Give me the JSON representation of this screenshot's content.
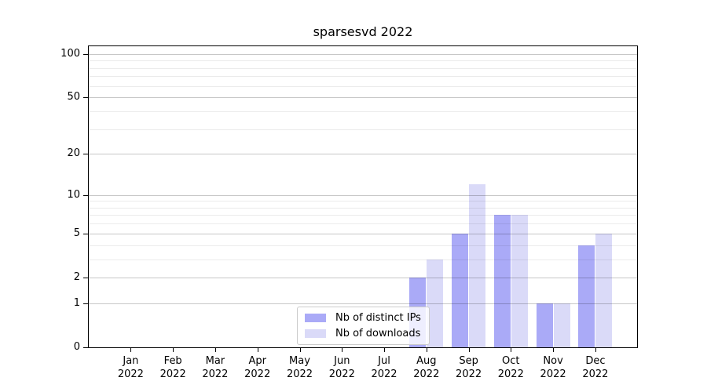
{
  "chart_data": {
    "type": "bar",
    "title": "sparsesvd 2022",
    "x_categories": [
      "Jan 2022",
      "Feb 2022",
      "Mar 2022",
      "Apr 2022",
      "May 2022",
      "Jun 2022",
      "Jul 2022",
      "Aug 2022",
      "Sep 2022",
      "Oct 2022",
      "Nov 2022",
      "Dec 2022"
    ],
    "x_tick_months": [
      "Jan",
      "Feb",
      "Mar",
      "Apr",
      "May",
      "Jun",
      "Jul",
      "Aug",
      "Sep",
      "Oct",
      "Nov",
      "Dec"
    ],
    "x_tick_year": "2022",
    "series": [
      {
        "name": "Nb of distinct IPs",
        "color": "#aaaaf7",
        "values": [
          0,
          0,
          0,
          0,
          0,
          0,
          0,
          2,
          5,
          7,
          1,
          4
        ]
      },
      {
        "name": "Nb of downloads",
        "color": "#dadaf8",
        "values": [
          0,
          0,
          0,
          0,
          0,
          0,
          0,
          3,
          12,
          7,
          1,
          5
        ]
      }
    ],
    "xlabel": "",
    "ylabel": "",
    "y_scale": "log1p",
    "y_major_ticks": [
      0,
      1,
      2,
      5,
      10,
      20,
      50,
      100
    ],
    "y_minor_gridlines": [
      3,
      4,
      6,
      7,
      8,
      9,
      30,
      40,
      60,
      70,
      80,
      90
    ],
    "ylim": [
      0,
      113
    ],
    "grid": true,
    "legend_position": "lower center"
  },
  "colors": {
    "background": "#ffffff",
    "axis": "#000000",
    "major_grid": "rgba(0,0,0,0.22)",
    "minor_grid": "rgba(0,0,0,0.08)",
    "bar_distinct_ips": "#aaaaf7",
    "bar_downloads": "#dadaf8"
  }
}
